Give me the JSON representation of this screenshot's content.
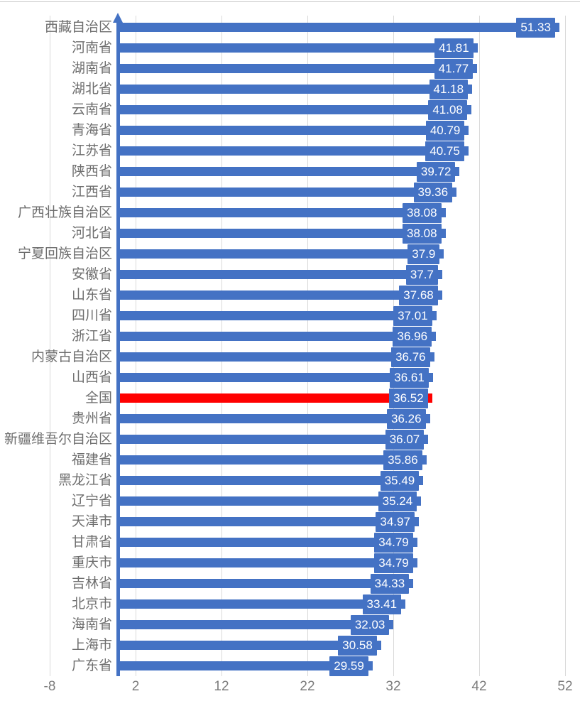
{
  "chart_data": {
    "type": "bar",
    "orientation": "horizontal",
    "title": "",
    "xlabel": "",
    "ylabel": "",
    "categories": [
      "西藏自治区",
      "河南省",
      "湖南省",
      "湖北省",
      "云南省",
      "青海省",
      "江苏省",
      "陕西省",
      "江西省",
      "广西壮族自治区",
      "河北省",
      "宁夏回族自治区",
      "安徽省",
      "山东省",
      "四川省",
      "浙江省",
      "内蒙古自治区",
      "山西省",
      "全国",
      "贵州省",
      "新疆维吾尔自治区",
      "福建省",
      "黑龙江省",
      "辽宁省",
      "天津市",
      "甘肃省",
      "重庆市",
      "吉林省",
      "北京市",
      "海南省",
      "上海市",
      "广东省"
    ],
    "values": [
      51.33,
      41.81,
      41.77,
      41.18,
      41.08,
      40.79,
      40.75,
      39.72,
      39.36,
      38.08,
      38.08,
      37.9,
      37.7,
      37.68,
      37.01,
      36.96,
      36.76,
      36.61,
      36.52,
      36.26,
      36.07,
      35.86,
      35.49,
      35.24,
      34.97,
      34.79,
      34.79,
      34.33,
      33.41,
      32.03,
      30.58,
      29.59
    ],
    "value_labels": [
      "51.33",
      "41.81",
      "41.77",
      "41.18",
      "41.08",
      "40.79",
      "40.75",
      "39.72",
      "39.36",
      "38.08",
      "38.08",
      "37.9",
      "37.7",
      "37.68",
      "37.01",
      "36.96",
      "36.76",
      "36.61",
      "36.52",
      "36.26",
      "36.07",
      "35.86",
      "35.49",
      "35.24",
      "34.97",
      "34.79",
      "34.79",
      "34.33",
      "33.41",
      "32.03",
      "30.58",
      "29.59"
    ],
    "highlight_category": "全国",
    "highlight_index": 18,
    "x_ticks": [
      -8,
      2,
      12,
      22,
      32,
      42,
      52
    ],
    "x_tick_labels": [
      "-8",
      "2",
      "12",
      "22",
      "32",
      "42",
      "52"
    ],
    "xlim": [
      -8,
      52
    ],
    "grid": true,
    "legend": null,
    "colors": {
      "bar": "#4472C4",
      "highlight_bar": "#FF0000",
      "value_label_bg": "#4472C4",
      "value_label_text": "#FFFFFF",
      "axis_line": "#4472C4",
      "gridline": "#D9D9D9",
      "category_text": "#6E6E6E",
      "tick_text": "#7D7D7D"
    }
  }
}
